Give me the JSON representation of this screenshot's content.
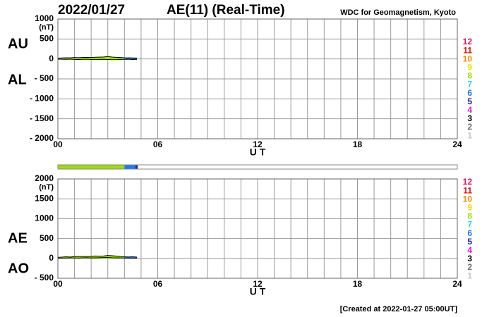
{
  "header": {
    "date": "2022/01/27",
    "title": "AE(11) (Real-Time)",
    "source": "WDC for Geomagnetism, Kyoto"
  },
  "chart_data": [
    {
      "type": "line",
      "ylabels": [
        "AU",
        "AL"
      ],
      "yunit": "(nT)",
      "xlabel": "U T",
      "xlim": [
        0,
        24
      ],
      "xticks": [
        {
          "value": 0,
          "label": "00"
        },
        {
          "value": 6,
          "label": "06"
        },
        {
          "value": 12,
          "label": "12"
        },
        {
          "value": 18,
          "label": "18"
        },
        {
          "value": 24,
          "label": "24"
        }
      ],
      "x_minor_step": 1,
      "ylim": [
        -2000,
        1000
      ],
      "yticks": [
        1000,
        500,
        0,
        {
          "value": -500,
          "label": "- 500"
        },
        {
          "value": -1000,
          "label": "- 1000"
        },
        {
          "value": -1500,
          "label": "- 1500"
        },
        {
          "value": -2000,
          "label": "- 2000"
        }
      ],
      "grid": true,
      "x": [
        0,
        0.25,
        0.5,
        0.75,
        1,
        1.25,
        1.5,
        1.75,
        2,
        2.25,
        2.5,
        2.75,
        3,
        3.25,
        3.5,
        3.75,
        4,
        4.25,
        4.5,
        4.75
      ],
      "series": [
        {
          "name": "AU",
          "color": "#000000",
          "values": [
            20,
            25,
            30,
            28,
            35,
            32,
            38,
            40,
            36,
            42,
            45,
            50,
            60,
            48,
            40,
            35,
            30,
            28,
            25,
            22
          ]
        },
        {
          "name": "AL",
          "color": "#000000",
          "values": [
            -5,
            -8,
            -10,
            -6,
            -12,
            -15,
            -10,
            -8,
            -14,
            -18,
            -12,
            -10,
            -15,
            -20,
            -18,
            -12,
            -10,
            -8,
            -15,
            -10
          ]
        }
      ],
      "coverage": [
        {
          "x0": 0,
          "x1": 4,
          "color": "#9ee000"
        },
        {
          "x0": 4,
          "x1": 4.65,
          "color": "#1e78ff"
        },
        {
          "x0": 4.65,
          "x1": 4.8,
          "color": "#2a2aa8"
        }
      ],
      "station_legend": [
        {
          "label": "12",
          "color": "#e0106a"
        },
        {
          "label": "11",
          "color": "#e01010"
        },
        {
          "label": "10",
          "color": "#f09000"
        },
        {
          "label": "9",
          "color": "#f0e000"
        },
        {
          "label": "8",
          "color": "#a0e000"
        },
        {
          "label": "7",
          "color": "#20e0e0"
        },
        {
          "label": "6",
          "color": "#1e78ff"
        },
        {
          "label": "5",
          "color": "#2020a0"
        },
        {
          "label": "4",
          "color": "#e010e0"
        },
        {
          "label": "3",
          "color": "#000000"
        },
        {
          "label": "2",
          "color": "#707070"
        },
        {
          "label": "1",
          "color": "#c8c8c8"
        }
      ]
    },
    {
      "type": "line",
      "ylabels": [
        "AE",
        "AO"
      ],
      "yunit": "(nT)",
      "xlabel": "U T",
      "xlim": [
        0,
        24
      ],
      "xticks": [
        {
          "value": 0,
          "label": "00"
        },
        {
          "value": 6,
          "label": "06"
        },
        {
          "value": 12,
          "label": "12"
        },
        {
          "value": 18,
          "label": "18"
        },
        {
          "value": 24,
          "label": "24"
        }
      ],
      "x_minor_step": 1,
      "ylim": [
        -500,
        2000
      ],
      "yticks": [
        2000,
        1500,
        1000,
        500,
        0,
        {
          "value": -500,
          "label": "- 500"
        }
      ],
      "grid": true,
      "x": [
        0,
        0.25,
        0.5,
        0.75,
        1,
        1.25,
        1.5,
        1.75,
        2,
        2.25,
        2.5,
        2.75,
        3,
        3.25,
        3.5,
        3.75,
        4,
        4.25,
        4.5,
        4.75
      ],
      "series": [
        {
          "name": "AE",
          "color": "#000000",
          "values": [
            25,
            33,
            40,
            34,
            47,
            47,
            48,
            48,
            50,
            60,
            57,
            60,
            75,
            68,
            58,
            47,
            40,
            36,
            40,
            32
          ]
        },
        {
          "name": "AO",
          "color": "#000000",
          "values": [
            7.5,
            8.5,
            10,
            11,
            11.5,
            8.5,
            14,
            16,
            11,
            12,
            16.5,
            20,
            22.5,
            14,
            11,
            11.5,
            10,
            10,
            5,
            6
          ]
        }
      ],
      "station_legend": [
        {
          "label": "12",
          "color": "#e0106a"
        },
        {
          "label": "11",
          "color": "#e01010"
        },
        {
          "label": "10",
          "color": "#f09000"
        },
        {
          "label": "9",
          "color": "#f0e000"
        },
        {
          "label": "8",
          "color": "#a0e000"
        },
        {
          "label": "7",
          "color": "#20e0e0"
        },
        {
          "label": "6",
          "color": "#1e78ff"
        },
        {
          "label": "5",
          "color": "#2020a0"
        },
        {
          "label": "4",
          "color": "#e010e0"
        },
        {
          "label": "3",
          "color": "#000000"
        },
        {
          "label": "2",
          "color": "#707070"
        },
        {
          "label": "1",
          "color": "#c8c8c8"
        }
      ]
    }
  ],
  "footer": "[Created at 2022-01-27 05:00UT]"
}
